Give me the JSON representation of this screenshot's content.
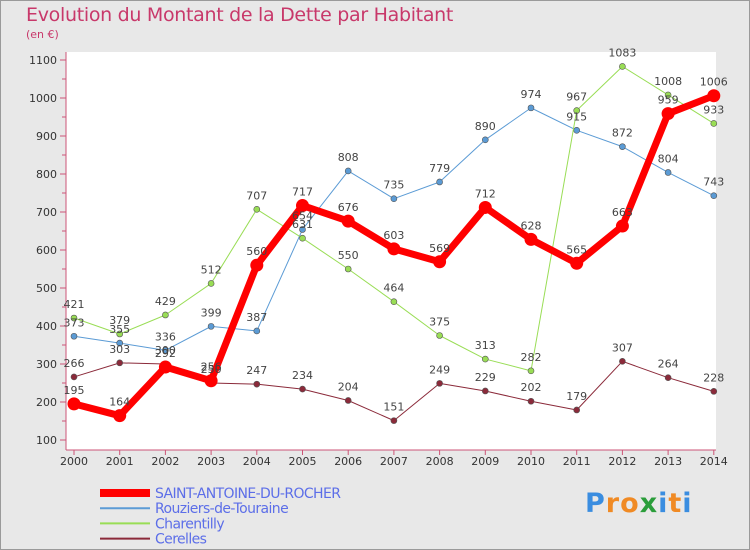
{
  "chart_data": {
    "type": "line",
    "title": "Evolution du Montant de la Dette par Habitant",
    "subtitle": "(en €)",
    "x": [
      "2000",
      "2001",
      "2002",
      "2003",
      "2004",
      "2005",
      "2006",
      "2007",
      "2008",
      "2009",
      "2010",
      "2011",
      "2012",
      "2013",
      "2014"
    ],
    "ylim": [
      100,
      1100
    ],
    "yticks": [
      100,
      200,
      300,
      400,
      500,
      600,
      700,
      800,
      900,
      1000,
      1100
    ],
    "grid": "none",
    "legend_placement": "bottom-left",
    "series": [
      {
        "name": "SAINT-ANTOINE-DU-ROCHER",
        "color": "#ff0000",
        "width": 7,
        "marker": 7,
        "values": [
          195,
          164,
          292,
          256,
          560,
          717,
          676,
          603,
          569,
          712,
          628,
          565,
          663,
          959,
          1006
        ]
      },
      {
        "name": "Rouziers-de-Touraine",
        "color": "#5b9bd5",
        "width": 1,
        "marker": 3,
        "values": [
          373,
          355,
          336,
          399,
          387,
          654,
          808,
          735,
          779,
          890,
          974,
          915,
          872,
          804,
          743
        ]
      },
      {
        "name": "Charentilly",
        "color": "#99dd55",
        "width": 1,
        "marker": 3,
        "values": [
          421,
          379,
          429,
          512,
          707,
          631,
          550,
          464,
          375,
          313,
          282,
          967,
          1083,
          1008,
          933
        ]
      },
      {
        "name": "Cerelles",
        "color": "#8b2a3a",
        "width": 1,
        "marker": 3,
        "values": [
          266,
          303,
          300,
          250,
          247,
          234,
          204,
          151,
          249,
          229,
          202,
          179,
          307,
          264,
          228
        ]
      }
    ]
  },
  "logo": {
    "text": "Proxiti",
    "letters": [
      "P",
      "r",
      "o",
      "x",
      "i",
      "t",
      "i"
    ],
    "colors": [
      "#3a8de0",
      "#f08a24",
      "#f08a24",
      "#2a9d3a",
      "#3a8de0",
      "#f08a24",
      "#3a8de0"
    ]
  }
}
